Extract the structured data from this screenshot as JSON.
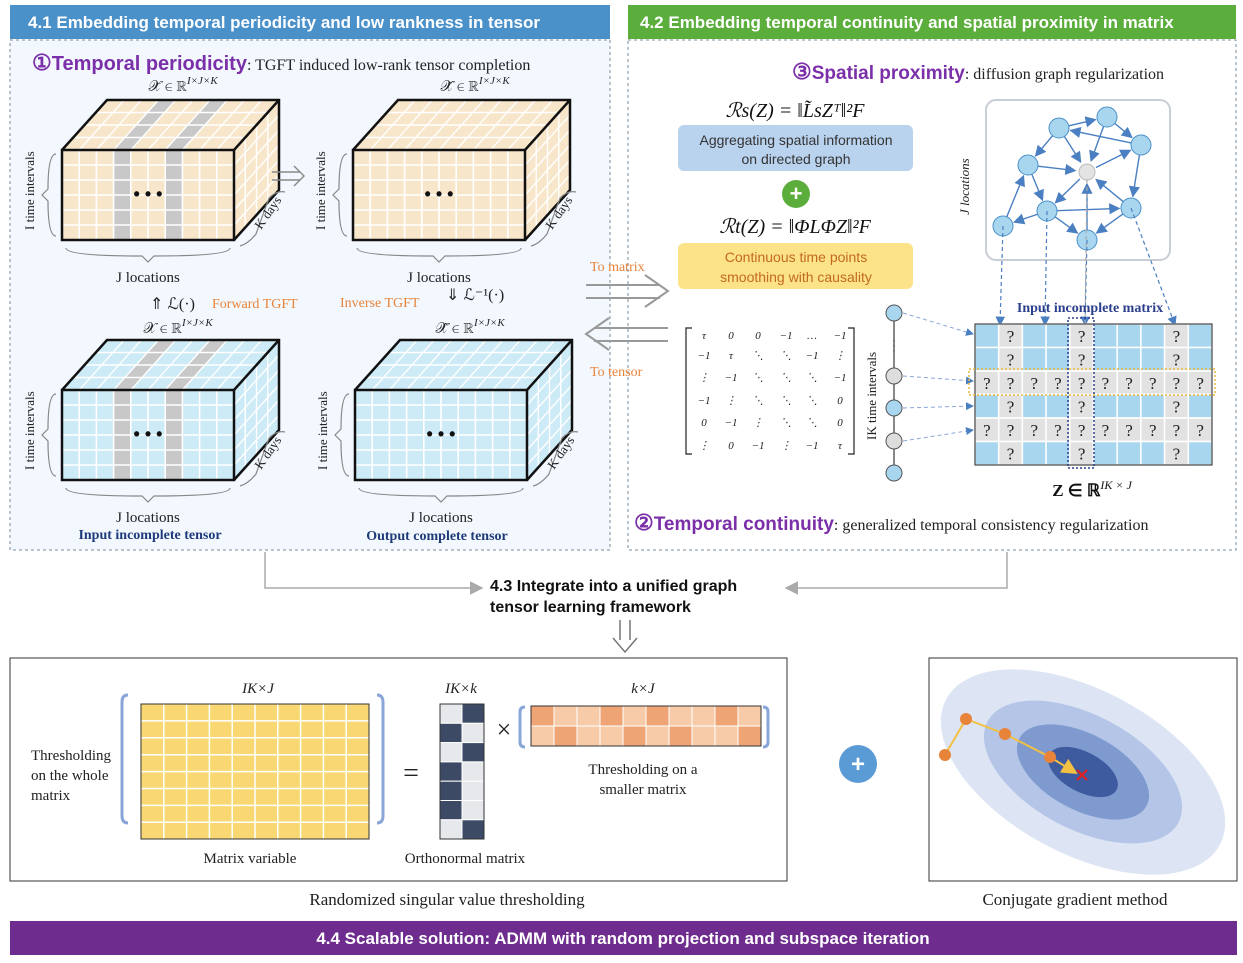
{
  "sections": {
    "s41": {
      "title": "4.1 Embedding temporal periodicity and low rankness in tensor",
      "color": "#4A90C9"
    },
    "s42": {
      "title": "4.2 Embedding temporal continuity and spatial proximity in matrix",
      "color": "#5BAE3C"
    },
    "s43": {
      "title_line1": "4.3 Integrate into a unified graph",
      "title_line2": "tensor learning framework"
    },
    "s44": {
      "title": "4.4 Scalable solution: ADMM with random projection and subspace iteration",
      "color": "#6E2C8E"
    }
  },
  "periodicity": {
    "number": "①",
    "name": "Temporal periodicity",
    "desc": ": TGFT induced low-rank tensor completion"
  },
  "tensors": {
    "xbar_top": "𝒳̄ ∈ ℝ",
    "xbar_top_sup": "I×J×K",
    "xcheck_top": "𝒳̌ ∈ ℝ",
    "xcheck_top_sup": "I×J×K",
    "x_input": "𝒳 ∈ ℝ",
    "x_input_sup": "I×J×K",
    "xhat_output": "𝒳̂ ∈ ℝ",
    "xhat_output_sup": "I×J×K",
    "i_time_intervals": "I time intervals",
    "k_days": "K days",
    "j_locations": "J locations",
    "dots": "• • •",
    "input_label": "Input incomplete tensor",
    "output_label": "Output complete tensor",
    "forward_op": "⇑ ℒ(·)",
    "forward_label": "Forward TGFT",
    "inverse_label": "Inverse TGFT",
    "inverse_op": "⇓ ℒ⁻¹(·)"
  },
  "arrows": {
    "to_matrix": "To matrix",
    "to_tensor": "To tensor"
  },
  "spatial": {
    "number": "③",
    "name": "Spatial proximity",
    "desc": ": diffusion graph regularization",
    "j_locations": "J locations"
  },
  "regs": {
    "rs": "ℛs(Z) = ‖L̃sZᵀ‖²F",
    "rs_box_line1": "Aggregating spatial information",
    "rs_box_line2": "on directed graph",
    "plus": "+",
    "rt": "ℛt(Z) = ‖ΦLΦZ‖²F",
    "rt_box_line1": "Continuous time points",
    "rt_box_line2": "smoothing with causality"
  },
  "phi_matrix": {
    "rows": [
      [
        "τ",
        "0",
        "0",
        "−1",
        "…",
        "−1"
      ],
      [
        "−1",
        "τ",
        "⋱",
        "⋱",
        "−1",
        "⋮"
      ],
      [
        "⋮",
        "−1",
        "⋱",
        "⋱",
        "⋱",
        "−1"
      ],
      [
        "−1",
        "⋮",
        "⋱",
        "⋱",
        "⋱",
        "0"
      ],
      [
        "0",
        "−1",
        "⋮",
        "⋱",
        "⋱",
        "0"
      ],
      [
        "⋮",
        "0",
        "−1",
        "⋮",
        "−1",
        "τ"
      ]
    ]
  },
  "incomplete_matrix": {
    "title": "Input incomplete matrix",
    "ik_time_intervals": "IK time intervals",
    "caption": "Z ∈ ℝ",
    "caption_sup": "IK × J",
    "qmark": "?"
  },
  "continuity": {
    "number": "②",
    "name": "Temporal continuity",
    "desc": ": generalized temporal consistency regularization"
  },
  "rsvt": {
    "ikxj": "IK×J",
    "ikxk": "IK×k",
    "kxj": "k×J",
    "eq": "=",
    "times": "×",
    "thresh_whole_1": "Thresholding",
    "thresh_whole_2": "on the whole",
    "thresh_whole_3": "matrix",
    "thresh_small_1": "Thresholding on a",
    "thresh_small_2": "smaller matrix",
    "matrix_variable": "Matrix variable",
    "orthonormal": "Orthonormal matrix",
    "caption": "Randomized singular value thresholding"
  },
  "cg": {
    "caption": "Conjugate gradient method",
    "plus": "+"
  },
  "colors": {
    "purple": "#7B2FA8",
    "orange": "#E8833A",
    "beige": "#F8E6CA",
    "lightblue": "#CDEAF7",
    "gray": "#C8C8C8",
    "yellow": "#F9D873"
  }
}
